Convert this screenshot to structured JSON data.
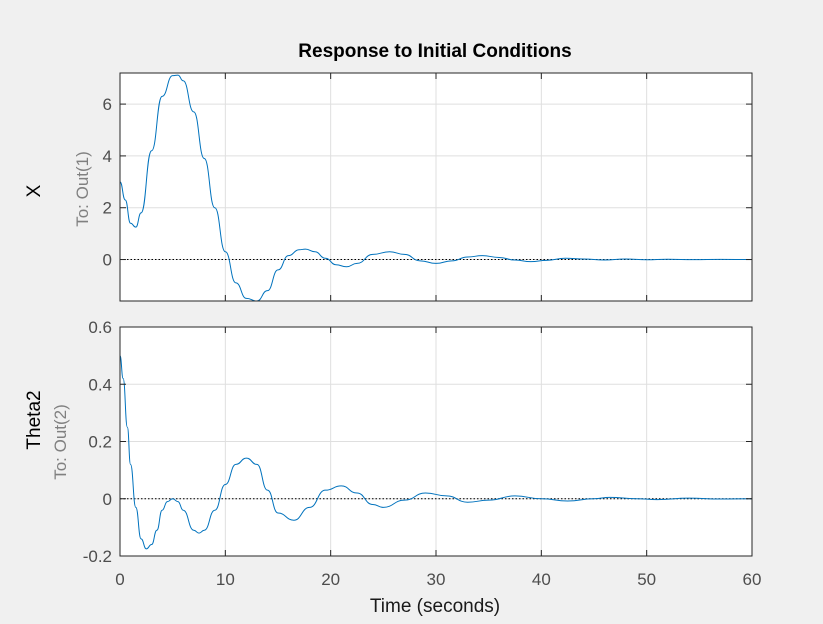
{
  "chart_data": {
    "type": "line",
    "title": "Response to Initial Conditions",
    "xlabel": "Time (seconds)",
    "xlim": [
      0,
      60
    ],
    "xticks": [
      0,
      10,
      20,
      30,
      40,
      50,
      60
    ],
    "grid": true,
    "line_color": "#0072bd",
    "zero_line_color": "#000000",
    "subplots": [
      {
        "ylabel": "X",
        "ysublabel": "To: Out(1)",
        "ylim": [
          -1.6,
          7.2
        ],
        "yticks": [
          0,
          2,
          4,
          6
        ],
        "series": [
          {
            "x": [
              0,
              0.5,
              1.0,
              1.5,
              2.0,
              3.0,
              4.0,
              5.0,
              5.5,
              6.0,
              7.0,
              8.0,
              9.0,
              10.0,
              11.0,
              12.0,
              13.0,
              14.0,
              15.0,
              16.0,
              17.0,
              17.6,
              18.5,
              19.5,
              20.5,
              21.5,
              22.5,
              24.0,
              25.6,
              27.0,
              28.5,
              30.0,
              31.5,
              33.0,
              34.4,
              36.0,
              37.5,
              39.0,
              40.5,
              42.3,
              44.0,
              46.0,
              48.0,
              50.0,
              52.0,
              54.5,
              57.0,
              60.0
            ],
            "y": [
              3.0,
              2.3,
              1.4,
              1.25,
              1.8,
              4.2,
              6.3,
              7.1,
              7.12,
              6.9,
              5.7,
              3.9,
              2.0,
              0.3,
              -0.9,
              -1.5,
              -1.6,
              -1.2,
              -0.4,
              0.15,
              0.38,
              0.4,
              0.3,
              0.05,
              -0.2,
              -0.28,
              -0.15,
              0.2,
              0.3,
              0.2,
              -0.05,
              -0.15,
              -0.05,
              0.1,
              0.15,
              0.08,
              -0.02,
              -0.08,
              -0.03,
              0.05,
              0.02,
              -0.02,
              0.02,
              -0.01,
              0.01,
              -0.005,
              0.005,
              0
            ]
          }
        ]
      },
      {
        "ylabel": "Theta2",
        "ysublabel": "To: Out(2)",
        "ylim": [
          -0.2,
          0.6
        ],
        "yticks": [
          -0.2,
          0,
          0.2,
          0.4,
          0.6
        ],
        "series": [
          {
            "x": [
              0,
              0.3,
              0.7,
              1.0,
              1.5,
              2.0,
              2.5,
              3.0,
              3.5,
              4.0,
              4.5,
              5.0,
              5.5,
              6.0,
              7.0,
              7.5,
              8.0,
              9.0,
              10.0,
              11.0,
              12.0,
              13.0,
              14.0,
              15.0,
              16.5,
              18.0,
              19.5,
              21.0,
              22.5,
              24.0,
              25.0,
              27.0,
              29.0,
              31.0,
              33.0,
              35.0,
              37.5,
              40.0,
              42.5,
              45.0,
              46.5,
              49.0,
              51.0,
              54.0,
              57.0,
              60.0
            ],
            "y": [
              0.5,
              0.42,
              0.25,
              0.12,
              -0.03,
              -0.14,
              -0.175,
              -0.16,
              -0.11,
              -0.04,
              -0.01,
              0.0,
              -0.01,
              -0.04,
              -0.11,
              -0.12,
              -0.11,
              -0.04,
              0.05,
              0.12,
              0.142,
              0.12,
              0.03,
              -0.05,
              -0.075,
              -0.03,
              0.03,
              0.045,
              0.02,
              -0.02,
              -0.03,
              -0.005,
              0.02,
              0.01,
              -0.012,
              -0.005,
              0.01,
              0.0,
              -0.008,
              0.0,
              0.005,
              0.0,
              -0.003,
              0.002,
              -0.001,
              0.0
            ]
          }
        ]
      }
    ]
  }
}
